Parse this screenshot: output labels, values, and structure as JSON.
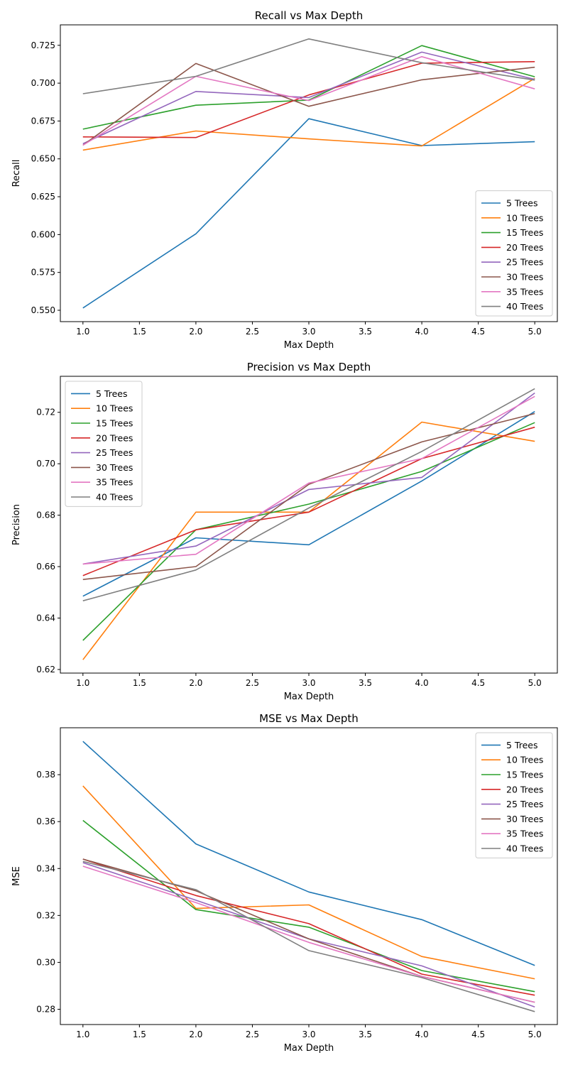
{
  "series_colors": [
    "#1f77b4",
    "#ff7f0e",
    "#2ca02c",
    "#d62728",
    "#9467bd",
    "#8c564b",
    "#e377c2",
    "#7f7f7f"
  ],
  "chart_data": [
    {
      "type": "line",
      "title": "Recall vs Max Depth",
      "xlabel": "Max Depth",
      "ylabel": "Recall",
      "x": [
        1,
        2,
        3,
        4,
        5
      ],
      "xlim": [
        0.8,
        5.2
      ],
      "ylim": [
        0.5425,
        0.7385
      ],
      "xticks": [
        "1.0",
        "1.5",
        "2.0",
        "2.5",
        "3.0",
        "3.5",
        "4.0",
        "4.5",
        "5.0"
      ],
      "yticks": [
        "0.550",
        "0.575",
        "0.600",
        "0.625",
        "0.650",
        "0.675",
        "0.700",
        "0.725"
      ],
      "grid": false,
      "legend_position": "lower-right",
      "series": [
        {
          "name": "5 Trees",
          "values": [
            0.5515,
            0.6005,
            0.6765,
            0.6588,
            0.6613
          ]
        },
        {
          "name": "10 Trees",
          "values": [
            0.6558,
            0.6684,
            0.6632,
            0.6585,
            0.7032
          ]
        },
        {
          "name": "15 Trees",
          "values": [
            0.6696,
            0.6854,
            0.6888,
            0.7248,
            0.7042
          ]
        },
        {
          "name": "20 Trees",
          "values": [
            0.6645,
            0.6641,
            0.6922,
            0.7132,
            0.7142
          ]
        },
        {
          "name": "25 Trees",
          "values": [
            0.66,
            0.6945,
            0.6905,
            0.7205,
            0.7025
          ]
        },
        {
          "name": "30 Trees",
          "values": [
            0.659,
            0.713,
            0.6847,
            0.7022,
            0.7105
          ]
        },
        {
          "name": "35 Trees",
          "values": [
            0.659,
            0.7045,
            0.6885,
            0.7175,
            0.6962
          ]
        },
        {
          "name": "40 Trees",
          "values": [
            0.693,
            0.7045,
            0.7292,
            0.7135,
            0.702
          ]
        }
      ]
    },
    {
      "type": "line",
      "title": "Precision vs Max Depth",
      "xlabel": "Max Depth",
      "ylabel": "Precision",
      "x": [
        1,
        2,
        3,
        4,
        5
      ],
      "xlim": [
        0.8,
        5.2
      ],
      "ylim": [
        0.6186,
        0.734
      ],
      "xticks": [
        "1.0",
        "1.5",
        "2.0",
        "2.5",
        "3.0",
        "3.5",
        "4.0",
        "4.5",
        "5.0"
      ],
      "yticks": [
        "0.62",
        "0.64",
        "0.66",
        "0.68",
        "0.70",
        "0.72"
      ],
      "grid": false,
      "legend_position": "upper-left",
      "series": [
        {
          "name": "5 Trees",
          "values": [
            0.6485,
            0.6712,
            0.6685,
            0.6933,
            0.7203
          ]
        },
        {
          "name": "10 Trees",
          "values": [
            0.6238,
            0.6812,
            0.6812,
            0.7162,
            0.7087
          ]
        },
        {
          "name": "15 Trees",
          "values": [
            0.6313,
            0.6743,
            0.6843,
            0.697,
            0.716
          ]
        },
        {
          "name": "20 Trees",
          "values": [
            0.6565,
            0.6743,
            0.6812,
            0.702,
            0.7142
          ]
        },
        {
          "name": "25 Trees",
          "values": [
            0.661,
            0.668,
            0.69,
            0.6947,
            0.7275
          ]
        },
        {
          "name": "30 Trees",
          "values": [
            0.655,
            0.66,
            0.692,
            0.7085,
            0.7195
          ]
        },
        {
          "name": "35 Trees",
          "values": [
            0.661,
            0.6648,
            0.6925,
            0.702,
            0.7262
          ]
        },
        {
          "name": "40 Trees",
          "values": [
            0.6467,
            0.6587,
            0.6828,
            0.7048,
            0.7292
          ]
        }
      ]
    },
    {
      "type": "line",
      "title": "MSE vs Max Depth",
      "xlabel": "Max Depth",
      "ylabel": "MSE",
      "x": [
        1,
        2,
        3,
        4,
        5
      ],
      "xlim": [
        0.8,
        5.2
      ],
      "ylim": [
        0.2735,
        0.4
      ],
      "xticks": [
        "1.0",
        "1.5",
        "2.0",
        "2.5",
        "3.0",
        "3.5",
        "4.0",
        "4.5",
        "5.0"
      ],
      "yticks": [
        "0.28",
        "0.30",
        "0.32",
        "0.34",
        "0.36",
        "0.38"
      ],
      "grid": false,
      "legend_position": "upper-right",
      "series": [
        {
          "name": "5 Trees",
          "values": [
            0.3942,
            0.3505,
            0.33,
            0.3182,
            0.2987
          ]
        },
        {
          "name": "10 Trees",
          "values": [
            0.3752,
            0.323,
            0.3245,
            0.3025,
            0.293
          ]
        },
        {
          "name": "15 Trees",
          "values": [
            0.3605,
            0.3225,
            0.315,
            0.2965,
            0.2875
          ]
        },
        {
          "name": "20 Trees",
          "values": [
            0.344,
            0.3285,
            0.3165,
            0.295,
            0.286
          ]
        },
        {
          "name": "25 Trees",
          "values": [
            0.3425,
            0.3265,
            0.31,
            0.2985,
            0.281
          ]
        },
        {
          "name": "30 Trees",
          "values": [
            0.344,
            0.3305,
            0.31,
            0.294,
            0.283
          ]
        },
        {
          "name": "35 Trees",
          "values": [
            0.341,
            0.3255,
            0.3085,
            0.294,
            0.283
          ]
        },
        {
          "name": "40 Trees",
          "values": [
            0.343,
            0.331,
            0.305,
            0.2935,
            0.279
          ]
        }
      ]
    }
  ]
}
